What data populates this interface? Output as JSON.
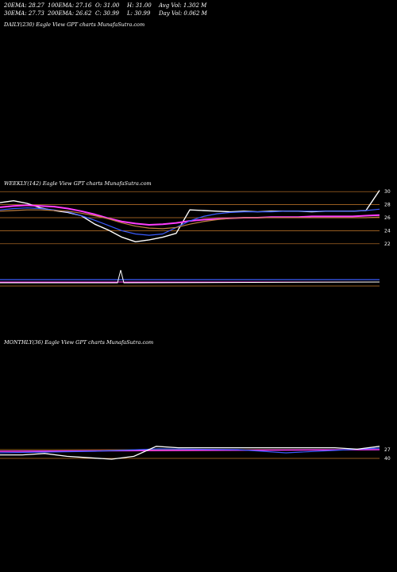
{
  "header": {
    "ema20": "20EMA: 28.27",
    "ema30": "30EMA: 27.73",
    "ema100": "100EMA: 27.16",
    "ema200": "200EMA: 26.62",
    "open": "O: 31.00",
    "close": "C: 30.99",
    "high": "H: 31.00",
    "low": "L: 30.99",
    "avg_vol": "Avg Vol: 1.302  M",
    "day_vol": "Day Vol: 0.062  M"
  },
  "panels": {
    "daily_label": "DAILY(230) Eagle   View  GPT charts MunafaSutra.com",
    "weekly_label": "WEEKLY(142) Eagle   View  GPT charts MunafaSutra.com",
    "monthly_label": "MONTHLY(36) Eagle   View  GPT charts MunafaSutra.com"
  },
  "colors": {
    "background": "#000000",
    "price": "#ffffff",
    "ema_short": "#ff3dff",
    "ema_mid": "#3a5cff",
    "ema_long": "#c08040",
    "gridline": "#c87a2a"
  },
  "chart_data": [
    {
      "type": "line",
      "panel": "weekly",
      "y_ticks": [
        30,
        28,
        26,
        24,
        22
      ],
      "ylim": [
        21,
        31
      ],
      "x": [
        0,
        5,
        10,
        15,
        20,
        25,
        30,
        35,
        40,
        45,
        50,
        55,
        60,
        65,
        70,
        75,
        80,
        85,
        90,
        95,
        100,
        105,
        110,
        115,
        120,
        125,
        130,
        135,
        140
      ],
      "series": [
        {
          "role": "price",
          "values": [
            28.3,
            28.6,
            28.2,
            27.5,
            27.1,
            26.8,
            26.3,
            25.0,
            24.1,
            23.0,
            22.3,
            22.6,
            23.0,
            23.6,
            27.2,
            27.1,
            27.0,
            26.9,
            27.0,
            26.9,
            27.0,
            27.0,
            27.0,
            26.9,
            27.0,
            27.0,
            27.0,
            27.1,
            30.2
          ]
        },
        {
          "role": "ema_short",
          "values": [
            27.6,
            27.8,
            27.9,
            27.8,
            27.7,
            27.4,
            27.0,
            26.5,
            25.9,
            25.4,
            25.1,
            24.9,
            25.0,
            25.2,
            25.5,
            25.7,
            25.8,
            25.9,
            26.0,
            26.0,
            26.1,
            26.1,
            26.1,
            26.2,
            26.2,
            26.2,
            26.2,
            26.3,
            26.4
          ]
        },
        {
          "role": "ema_mid",
          "values": [
            27.2,
            27.4,
            27.5,
            27.4,
            27.2,
            26.9,
            26.3,
            25.6,
            24.8,
            24.0,
            23.5,
            23.3,
            23.5,
            24.5,
            25.5,
            26.2,
            26.6,
            26.8,
            26.9,
            26.9,
            26.9,
            27.0,
            27.0,
            27.0,
            27.0,
            27.0,
            27.0,
            27.1,
            27.3
          ]
        },
        {
          "role": "ema_long",
          "values": [
            27.0,
            27.1,
            27.2,
            27.2,
            27.1,
            27.0,
            26.7,
            26.3,
            25.8,
            25.2,
            24.7,
            24.4,
            24.3,
            24.5,
            25.0,
            25.4,
            25.7,
            25.9,
            26.0,
            26.0,
            26.0,
            26.0,
            26.0,
            26.0,
            26.0,
            26.0,
            26.0,
            26.0,
            26.1
          ]
        }
      ]
    },
    {
      "type": "line",
      "panel": "monthly",
      "y_ticks": [
        27,
        40
      ],
      "series": [
        {
          "role": "price",
          "values": [
            0.3,
            0.3,
            0.4,
            0.2,
            0.1,
            0.0,
            0.2,
            0.9,
            0.8,
            0.8,
            0.8,
            0.8,
            0.8,
            0.8,
            0.8,
            0.8,
            0.7,
            0.9
          ]
        }
      ]
    }
  ]
}
